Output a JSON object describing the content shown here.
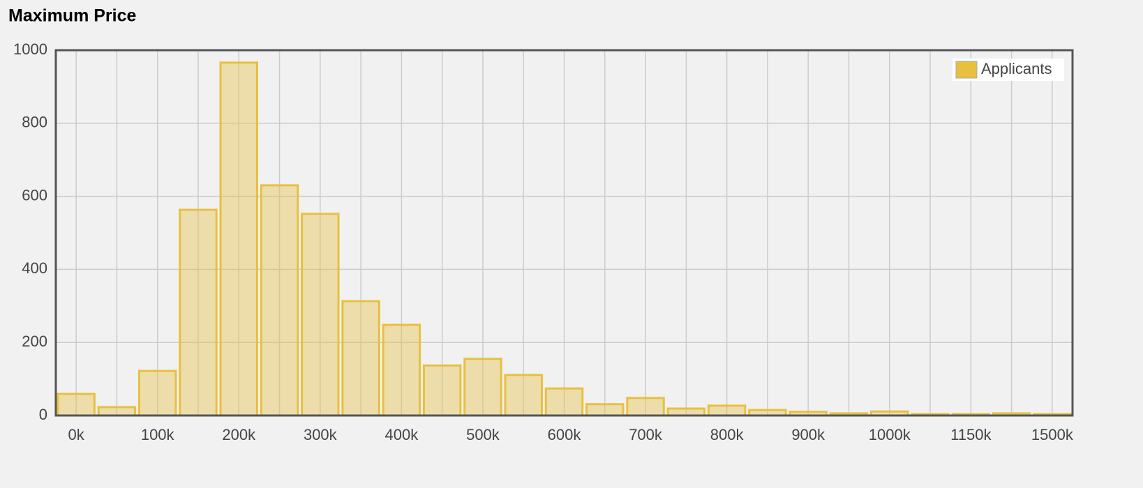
{
  "chart_data": {
    "type": "bar",
    "title": "Maximum Price",
    "categories": [
      "0k",
      null,
      "100k",
      null,
      "200k",
      null,
      "300k",
      null,
      "400k",
      null,
      "500k",
      null,
      "600k",
      null,
      "700k",
      null,
      "800k",
      null,
      "900k",
      null,
      "1000k",
      null,
      "1150k",
      null,
      "1500k"
    ],
    "series": [
      {
        "name": "Applicants",
        "color": "#e8c040",
        "values": [
          59,
          23,
          122,
          563,
          966,
          630,
          552,
          313,
          248,
          137,
          155,
          111,
          74,
          31,
          48,
          19,
          27,
          15,
          10,
          6,
          11,
          4,
          4,
          6,
          4
        ]
      }
    ],
    "ylim": [
      0,
      1000
    ],
    "yticks": [
      0,
      200,
      400,
      600,
      800,
      1000
    ],
    "grid": true,
    "legend": "top-right"
  }
}
